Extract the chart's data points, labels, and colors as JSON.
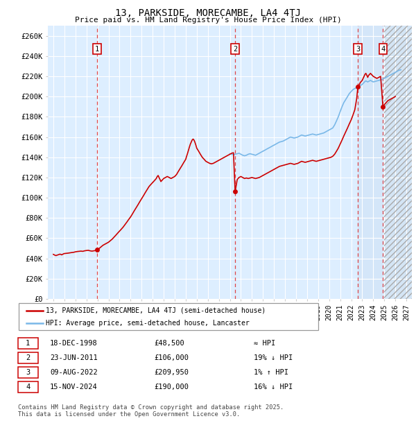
{
  "title": "13, PARKSIDE, MORECAMBE, LA4 4TJ",
  "subtitle": "Price paid vs. HM Land Registry's House Price Index (HPI)",
  "ylim": [
    0,
    270000
  ],
  "yticks": [
    0,
    20000,
    40000,
    60000,
    80000,
    100000,
    120000,
    140000,
    160000,
    180000,
    200000,
    220000,
    240000,
    260000
  ],
  "ytick_labels": [
    "£0",
    "£20K",
    "£40K",
    "£60K",
    "£80K",
    "£100K",
    "£120K",
    "£140K",
    "£160K",
    "£180K",
    "£200K",
    "£220K",
    "£240K",
    "£260K"
  ],
  "xlim_start": 1994.5,
  "xlim_end": 2027.5,
  "hpi_color": "#7ab8e8",
  "price_color": "#cc0000",
  "bg_color": "#ddeeff",
  "future_bg_color": "#e8f0f8",
  "grid_color": "#ffffff",
  "sale_dates_year": [
    1998.96,
    2011.48,
    2022.61,
    2024.88
  ],
  "sale_prices": [
    48500,
    106000,
    209950,
    190000
  ],
  "sale_labels": [
    "1",
    "2",
    "3",
    "4"
  ],
  "highlight_start": 2022.61,
  "highlight_end": 2024.88,
  "future_start": 2025.0,
  "legend_price_label": "13, PARKSIDE, MORECAMBE, LA4 4TJ (semi-detached house)",
  "legend_hpi_label": "HPI: Average price, semi-detached house, Lancaster",
  "table_rows": [
    [
      "1",
      "18-DEC-1998",
      "£48,500",
      "≈ HPI"
    ],
    [
      "2",
      "23-JUN-2011",
      "£106,000",
      "19% ↓ HPI"
    ],
    [
      "3",
      "09-AUG-2022",
      "£209,950",
      "1% ↑ HPI"
    ],
    [
      "4",
      "15-NOV-2024",
      "£190,000",
      "16% ↓ HPI"
    ]
  ],
  "footer": "Contains HM Land Registry data © Crown copyright and database right 2025.\nThis data is licensed under the Open Government Licence v3.0.",
  "price_anchors": [
    [
      1995.0,
      44000
    ],
    [
      1995.08,
      43500
    ],
    [
      1995.17,
      43000
    ],
    [
      1995.25,
      42800
    ],
    [
      1995.33,
      43200
    ],
    [
      1995.42,
      43500
    ],
    [
      1995.5,
      43800
    ],
    [
      1995.58,
      44200
    ],
    [
      1995.67,
      44000
    ],
    [
      1995.75,
      43500
    ],
    [
      1995.83,
      44000
    ],
    [
      1995.92,
      44500
    ],
    [
      1996.0,
      44800
    ],
    [
      1996.17,
      45000
    ],
    [
      1996.33,
      45200
    ],
    [
      1996.5,
      45500
    ],
    [
      1996.67,
      45800
    ],
    [
      1996.83,
      46000
    ],
    [
      1997.0,
      46500
    ],
    [
      1997.17,
      46800
    ],
    [
      1997.33,
      47000
    ],
    [
      1997.5,
      47200
    ],
    [
      1997.67,
      47000
    ],
    [
      1997.83,
      47500
    ],
    [
      1998.0,
      47800
    ],
    [
      1998.17,
      48000
    ],
    [
      1998.33,
      47500
    ],
    [
      1998.5,
      47200
    ],
    [
      1998.67,
      47500
    ],
    [
      1998.83,
      47800
    ],
    [
      1998.96,
      48500
    ],
    [
      1999.17,
      50000
    ],
    [
      1999.33,
      51500
    ],
    [
      1999.5,
      53000
    ],
    [
      1999.67,
      54000
    ],
    [
      1999.83,
      55000
    ],
    [
      2000.0,
      56000
    ],
    [
      2000.17,
      57500
    ],
    [
      2000.33,
      59000
    ],
    [
      2000.5,
      61000
    ],
    [
      2000.67,
      63000
    ],
    [
      2000.83,
      65000
    ],
    [
      2001.0,
      67000
    ],
    [
      2001.17,
      69000
    ],
    [
      2001.33,
      71000
    ],
    [
      2001.5,
      73500
    ],
    [
      2001.67,
      76000
    ],
    [
      2001.83,
      78500
    ],
    [
      2002.0,
      81000
    ],
    [
      2002.17,
      84000
    ],
    [
      2002.33,
      87000
    ],
    [
      2002.5,
      90000
    ],
    [
      2002.67,
      93000
    ],
    [
      2002.83,
      96000
    ],
    [
      2003.0,
      99000
    ],
    [
      2003.17,
      102000
    ],
    [
      2003.33,
      105000
    ],
    [
      2003.5,
      108000
    ],
    [
      2003.67,
      111000
    ],
    [
      2003.83,
      113000
    ],
    [
      2004.0,
      115000
    ],
    [
      2004.17,
      117000
    ],
    [
      2004.33,
      119000
    ],
    [
      2004.42,
      121000
    ],
    [
      2004.5,
      122000
    ],
    [
      2004.58,
      120000
    ],
    [
      2004.67,
      118000
    ],
    [
      2004.75,
      116000
    ],
    [
      2004.83,
      117000
    ],
    [
      2004.92,
      118000
    ],
    [
      2005.0,
      119000
    ],
    [
      2005.17,
      120000
    ],
    [
      2005.33,
      121000
    ],
    [
      2005.5,
      120000
    ],
    [
      2005.67,
      119000
    ],
    [
      2005.83,
      120000
    ],
    [
      2006.0,
      121000
    ],
    [
      2006.17,
      123000
    ],
    [
      2006.33,
      126000
    ],
    [
      2006.5,
      129000
    ],
    [
      2006.67,
      132000
    ],
    [
      2006.83,
      135000
    ],
    [
      2007.0,
      138000
    ],
    [
      2007.08,
      141000
    ],
    [
      2007.17,
      144000
    ],
    [
      2007.25,
      147000
    ],
    [
      2007.33,
      150000
    ],
    [
      2007.42,
      153000
    ],
    [
      2007.5,
      155000
    ],
    [
      2007.58,
      157000
    ],
    [
      2007.67,
      158000
    ],
    [
      2007.75,
      157000
    ],
    [
      2007.83,
      155000
    ],
    [
      2007.92,
      152000
    ],
    [
      2008.0,
      149000
    ],
    [
      2008.17,
      146000
    ],
    [
      2008.33,
      143000
    ],
    [
      2008.5,
      140000
    ],
    [
      2008.67,
      138000
    ],
    [
      2008.83,
      136000
    ],
    [
      2009.0,
      135000
    ],
    [
      2009.17,
      134000
    ],
    [
      2009.33,
      133500
    ],
    [
      2009.5,
      134000
    ],
    [
      2009.67,
      135000
    ],
    [
      2009.83,
      136000
    ],
    [
      2010.0,
      137000
    ],
    [
      2010.17,
      138000
    ],
    [
      2010.33,
      139000
    ],
    [
      2010.5,
      140000
    ],
    [
      2010.67,
      141000
    ],
    [
      2010.83,
      142000
    ],
    [
      2011.0,
      143000
    ],
    [
      2011.17,
      144000
    ],
    [
      2011.33,
      144500
    ],
    [
      2011.48,
      106000
    ],
    [
      2011.67,
      118000
    ],
    [
      2011.83,
      120000
    ],
    [
      2012.0,
      121000
    ],
    [
      2012.17,
      120000
    ],
    [
      2012.33,
      119000
    ],
    [
      2012.5,
      119500
    ],
    [
      2012.67,
      119000
    ],
    [
      2012.83,
      119500
    ],
    [
      2013.0,
      120000
    ],
    [
      2013.17,
      119500
    ],
    [
      2013.33,
      119000
    ],
    [
      2013.5,
      119500
    ],
    [
      2013.67,
      120000
    ],
    [
      2013.83,
      121000
    ],
    [
      2014.0,
      122000
    ],
    [
      2014.17,
      123000
    ],
    [
      2014.33,
      124000
    ],
    [
      2014.5,
      125000
    ],
    [
      2014.67,
      126000
    ],
    [
      2014.83,
      127000
    ],
    [
      2015.0,
      128000
    ],
    [
      2015.17,
      129000
    ],
    [
      2015.33,
      130000
    ],
    [
      2015.5,
      131000
    ],
    [
      2015.67,
      131500
    ],
    [
      2015.83,
      132000
    ],
    [
      2016.0,
      132500
    ],
    [
      2016.17,
      133000
    ],
    [
      2016.33,
      133500
    ],
    [
      2016.5,
      134000
    ],
    [
      2016.67,
      133500
    ],
    [
      2016.83,
      133000
    ],
    [
      2017.0,
      133500
    ],
    [
      2017.17,
      134000
    ],
    [
      2017.33,
      135000
    ],
    [
      2017.5,
      136000
    ],
    [
      2017.67,
      135500
    ],
    [
      2017.83,
      135000
    ],
    [
      2018.0,
      135500
    ],
    [
      2018.17,
      136000
    ],
    [
      2018.33,
      136500
    ],
    [
      2018.5,
      137000
    ],
    [
      2018.67,
      136500
    ],
    [
      2018.83,
      136000
    ],
    [
      2019.0,
      136500
    ],
    [
      2019.17,
      137000
    ],
    [
      2019.33,
      137500
    ],
    [
      2019.5,
      138000
    ],
    [
      2019.67,
      138500
    ],
    [
      2019.83,
      139000
    ],
    [
      2020.0,
      139500
    ],
    [
      2020.17,
      140000
    ],
    [
      2020.33,
      141000
    ],
    [
      2020.5,
      143000
    ],
    [
      2020.67,
      146000
    ],
    [
      2020.83,
      149000
    ],
    [
      2021.0,
      153000
    ],
    [
      2021.17,
      157000
    ],
    [
      2021.33,
      161000
    ],
    [
      2021.5,
      165000
    ],
    [
      2021.67,
      169000
    ],
    [
      2021.83,
      173000
    ],
    [
      2022.0,
      177000
    ],
    [
      2022.17,
      182000
    ],
    [
      2022.33,
      187000
    ],
    [
      2022.5,
      198000
    ],
    [
      2022.61,
      209950
    ],
    [
      2022.75,
      212000
    ],
    [
      2022.83,
      214000
    ],
    [
      2022.92,
      215000
    ],
    [
      2023.0,
      216000
    ],
    [
      2023.08,
      218000
    ],
    [
      2023.17,
      220000
    ],
    [
      2023.25,
      222000
    ],
    [
      2023.33,
      223000
    ],
    [
      2023.42,
      221000
    ],
    [
      2023.5,
      219000
    ],
    [
      2023.58,
      221000
    ],
    [
      2023.67,
      222000
    ],
    [
      2023.75,
      223000
    ],
    [
      2023.83,
      222000
    ],
    [
      2023.92,
      221000
    ],
    [
      2024.0,
      220000
    ],
    [
      2024.17,
      219000
    ],
    [
      2024.33,
      218000
    ],
    [
      2024.5,
      219000
    ],
    [
      2024.67,
      220000
    ],
    [
      2024.88,
      190000
    ],
    [
      2025.0,
      192000
    ],
    [
      2025.17,
      194000
    ],
    [
      2025.33,
      196000
    ],
    [
      2025.5,
      197000
    ],
    [
      2025.67,
      198000
    ],
    [
      2025.83,
      199000
    ],
    [
      2026.0,
      200000
    ]
  ],
  "hpi_anchors": [
    [
      2011.0,
      143500
    ],
    [
      2011.17,
      143000
    ],
    [
      2011.33,
      142500
    ],
    [
      2011.48,
      143000
    ],
    [
      2011.67,
      143500
    ],
    [
      2011.83,
      144000
    ],
    [
      2012.0,
      143000
    ],
    [
      2012.17,
      142000
    ],
    [
      2012.33,
      141500
    ],
    [
      2012.5,
      142000
    ],
    [
      2012.67,
      143000
    ],
    [
      2012.83,
      143500
    ],
    [
      2013.0,
      143000
    ],
    [
      2013.17,
      142500
    ],
    [
      2013.33,
      142000
    ],
    [
      2013.5,
      143000
    ],
    [
      2013.67,
      144000
    ],
    [
      2013.83,
      145000
    ],
    [
      2014.0,
      146000
    ],
    [
      2014.17,
      147000
    ],
    [
      2014.33,
      148000
    ],
    [
      2014.5,
      149000
    ],
    [
      2014.67,
      150000
    ],
    [
      2014.83,
      151000
    ],
    [
      2015.0,
      152000
    ],
    [
      2015.17,
      153000
    ],
    [
      2015.33,
      154000
    ],
    [
      2015.5,
      155000
    ],
    [
      2015.67,
      155500
    ],
    [
      2015.83,
      156000
    ],
    [
      2016.0,
      157000
    ],
    [
      2016.17,
      158000
    ],
    [
      2016.33,
      159000
    ],
    [
      2016.5,
      160000
    ],
    [
      2016.67,
      159500
    ],
    [
      2016.83,
      159000
    ],
    [
      2017.0,
      159500
    ],
    [
      2017.17,
      160000
    ],
    [
      2017.33,
      161000
    ],
    [
      2017.5,
      162000
    ],
    [
      2017.67,
      161500
    ],
    [
      2017.83,
      161000
    ],
    [
      2018.0,
      161500
    ],
    [
      2018.17,
      162000
    ],
    [
      2018.33,
      162500
    ],
    [
      2018.5,
      163000
    ],
    [
      2018.67,
      162500
    ],
    [
      2018.83,
      162000
    ],
    [
      2019.0,
      162500
    ],
    [
      2019.17,
      163000
    ],
    [
      2019.33,
      163500
    ],
    [
      2019.5,
      164000
    ],
    [
      2019.67,
      165000
    ],
    [
      2019.83,
      166000
    ],
    [
      2020.0,
      167000
    ],
    [
      2020.17,
      168000
    ],
    [
      2020.33,
      169000
    ],
    [
      2020.5,
      172000
    ],
    [
      2020.67,
      176000
    ],
    [
      2020.83,
      180000
    ],
    [
      2021.0,
      185000
    ],
    [
      2021.17,
      190000
    ],
    [
      2021.33,
      194000
    ],
    [
      2021.5,
      197000
    ],
    [
      2021.67,
      200000
    ],
    [
      2021.83,
      203000
    ],
    [
      2022.0,
      205000
    ],
    [
      2022.17,
      207000
    ],
    [
      2022.33,
      208000
    ],
    [
      2022.5,
      209000
    ],
    [
      2022.67,
      210000
    ],
    [
      2022.83,
      211000
    ],
    [
      2022.92,
      211500
    ],
    [
      2023.0,
      212000
    ],
    [
      2023.08,
      213000
    ],
    [
      2023.17,
      214000
    ],
    [
      2023.25,
      215000
    ],
    [
      2023.33,
      215500
    ],
    [
      2023.42,
      215000
    ],
    [
      2023.5,
      214500
    ],
    [
      2023.58,
      215000
    ],
    [
      2023.67,
      215500
    ],
    [
      2023.75,
      216000
    ],
    [
      2023.83,
      215500
    ],
    [
      2023.92,
      215000
    ],
    [
      2024.0,
      214500
    ],
    [
      2024.17,
      215000
    ],
    [
      2024.33,
      215500
    ],
    [
      2024.5,
      216000
    ],
    [
      2024.67,
      216500
    ],
    [
      2024.83,
      217000
    ],
    [
      2024.88,
      217500
    ],
    [
      2025.0,
      218000
    ],
    [
      2025.17,
      219000
    ],
    [
      2025.33,
      220000
    ],
    [
      2025.5,
      221000
    ],
    [
      2025.67,
      222000
    ],
    [
      2025.83,
      223000
    ],
    [
      2026.0,
      224000
    ],
    [
      2026.17,
      225000
    ],
    [
      2026.33,
      226000
    ],
    [
      2026.5,
      226500
    ]
  ]
}
